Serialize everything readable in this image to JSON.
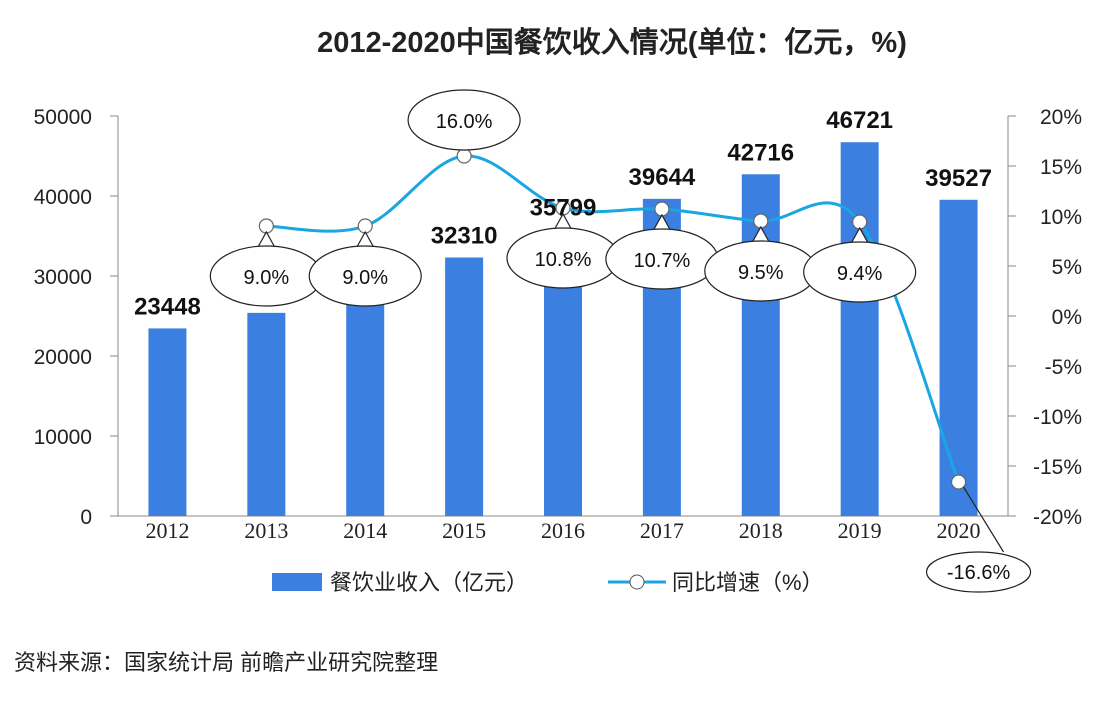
{
  "chart_data": {
    "type": "bar+line",
    "title": "2012-2020中国餐饮收入情况(单位：亿元，%)",
    "categories": [
      "2012",
      "2013",
      "2014",
      "2015",
      "2016",
      "2017",
      "2018",
      "2019",
      "2020"
    ],
    "series": [
      {
        "name": "餐饮业收入（亿元）",
        "type": "bar",
        "axis": "left",
        "color": "#3b7fe0",
        "values": [
          23448,
          25392,
          27860,
          32310,
          35799,
          39644,
          42716,
          46721,
          39527
        ],
        "labels": [
          "23448",
          null,
          null,
          "32310",
          "35799",
          "39644",
          "42716",
          "46721",
          "39527"
        ]
      },
      {
        "name": "同比增速（%）",
        "type": "line",
        "axis": "right",
        "color": "#1aa6e0",
        "values": [
          null,
          9.0,
          9.0,
          16.0,
          10.8,
          10.7,
          9.5,
          9.4,
          -16.6
        ],
        "labels": [
          null,
          "9.0%",
          "9.0%",
          "16.0%",
          "10.8%",
          "10.7%",
          "9.5%",
          "9.4%",
          "-16.6%"
        ]
      }
    ],
    "left_axis": {
      "range": [
        0,
        50000
      ],
      "ticks": [
        "0",
        "10000",
        "20000",
        "30000",
        "40000",
        "50000"
      ]
    },
    "right_axis": {
      "range": [
        -20,
        20
      ],
      "ticks": [
        "-20%",
        "-15%",
        "-10%",
        "-5%",
        "0%",
        "5%",
        "10%",
        "15%",
        "20%"
      ]
    },
    "legend_placement": "bottom",
    "grid": false
  },
  "source": "资料来源：国家统计局 前瞻产业研究院整理"
}
